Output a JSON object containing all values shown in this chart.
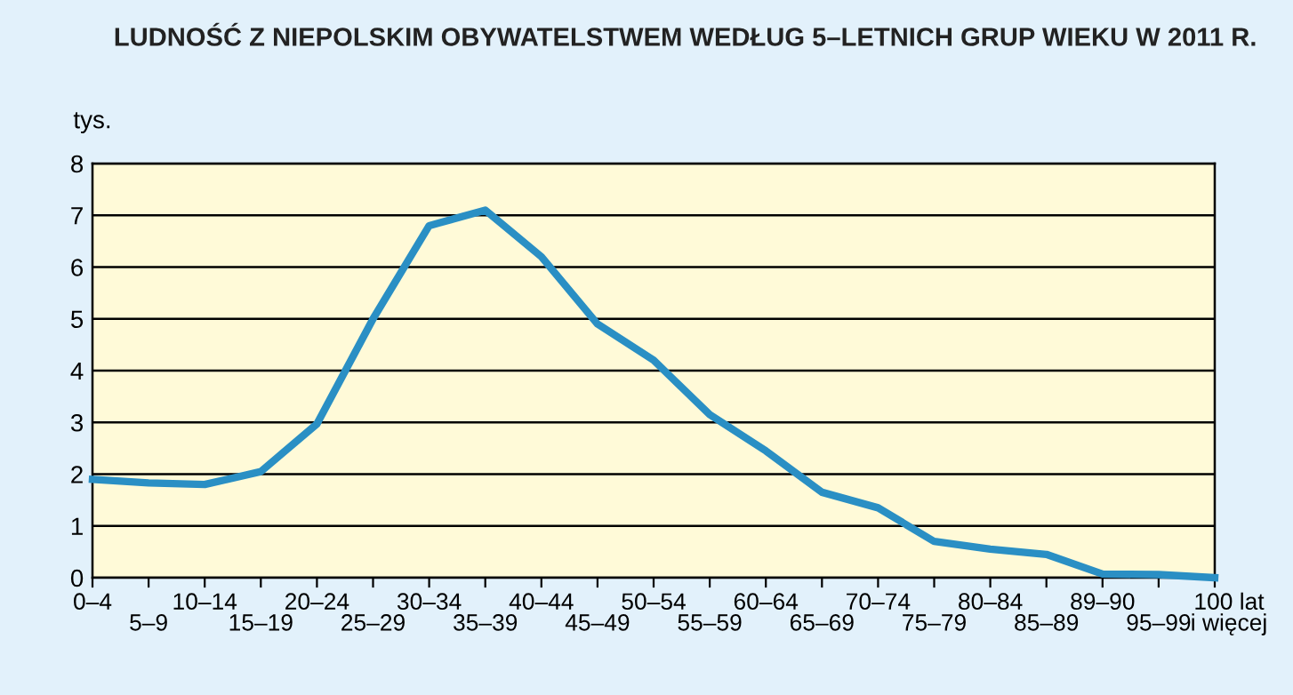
{
  "chart_data": {
    "type": "line",
    "title": "LUDNOŚĆ Z NIEPOLSKIM OBYWATELSTWEM WEDŁUG 5–LETNICH GRUP WIEKU W 2011 R.",
    "ylabel": "tys.",
    "categories": [
      "0–4",
      "5–9",
      "10–14",
      "15–19",
      "20–24",
      "25–29",
      "30–34",
      "35–39",
      "40–44",
      "45–49",
      "50–54",
      "55–59",
      "60–64",
      "65–69",
      "70–74",
      "75–79",
      "80–84",
      "85–89",
      "89–90",
      "95–99",
      "100 lat\ni więcej"
    ],
    "series": [
      {
        "color": "#2a8fc4",
        "values": [
          1.9,
          1.83,
          1.8,
          2.05,
          2.97,
          5.0,
          6.8,
          7.1,
          6.2,
          4.9,
          4.2,
          3.15,
          2.45,
          1.65,
          1.35,
          0.7,
          0.55,
          0.45,
          0.07,
          0.06,
          0.0
        ]
      }
    ],
    "ylim": [
      0,
      8
    ],
    "yticks": [
      0,
      1,
      2,
      3,
      4,
      5,
      6,
      7,
      8
    ],
    "grid": "y",
    "marker": "none",
    "line_style": "solid",
    "legend": false
  }
}
